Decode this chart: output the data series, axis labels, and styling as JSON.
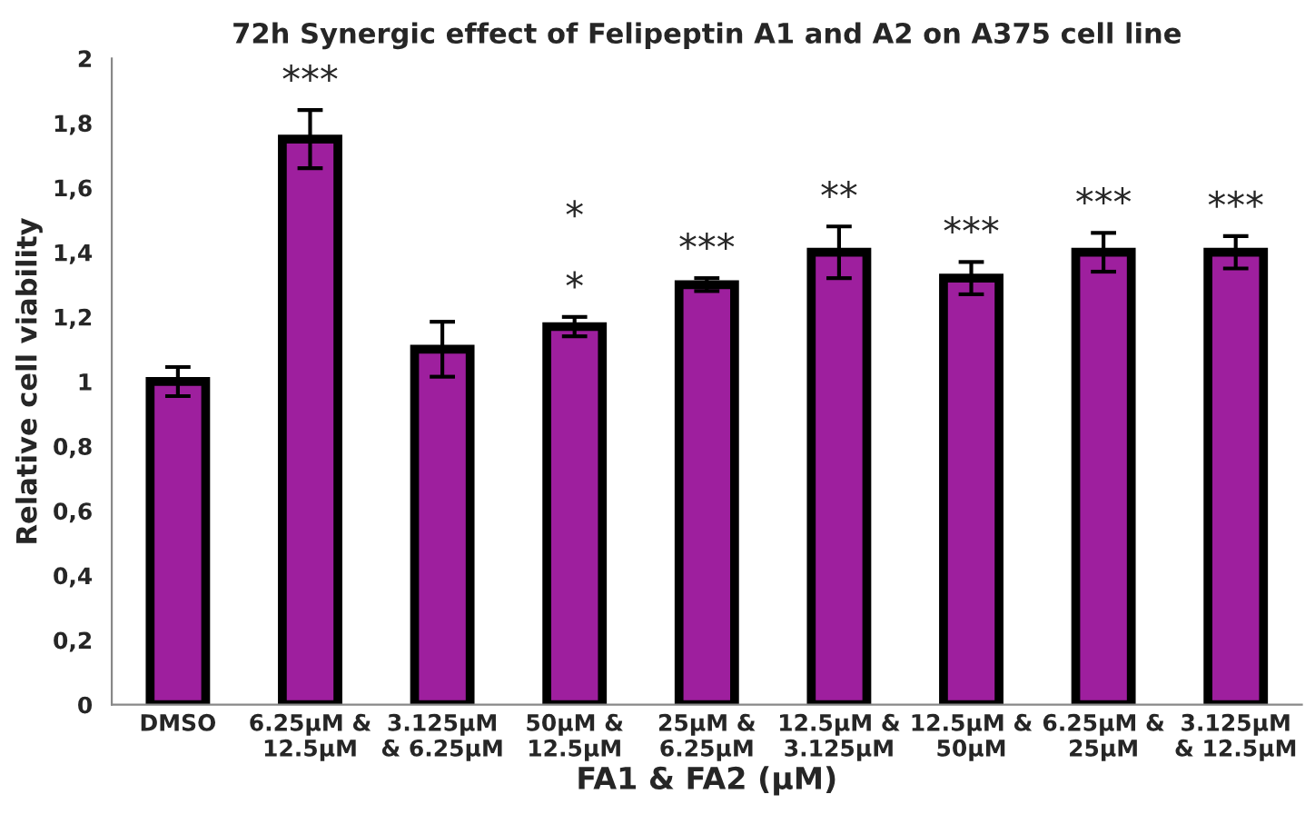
{
  "chart_data": {
    "type": "bar",
    "title": "72h Synergic effect of Felipeptin A1 and A2 on A375 cell line",
    "xlabel": "FA1 & FA2 (μM)",
    "ylabel": "Relative cell viability",
    "categories": [
      "DMSO",
      "6.25μM &\n12.5μM",
      "3.125μM\n& 6.25μM",
      "50μM &\n12.5μM",
      "25μM &\n6.25μM",
      "12.5μM &\n3.125μM",
      "12.5μM &\n50μM",
      "6.25μM &\n25μM",
      "3.125μM\n& 12.5μM"
    ],
    "values": [
      1.0,
      1.75,
      1.1,
      1.17,
      1.3,
      1.4,
      1.32,
      1.4,
      1.4
    ],
    "errors": [
      0.045,
      0.09,
      0.085,
      0.03,
      0.02,
      0.08,
      0.05,
      0.06,
      0.05
    ],
    "color": "#9e1f9e",
    "ylim": [
      0,
      2
    ],
    "yticks": [
      0,
      {
        "value": 0.2,
        "label": "0,2"
      },
      {
        "value": 0.4,
        "label": "0,4"
      },
      {
        "value": 0.6,
        "label": "0,6"
      },
      {
        "value": 0.8,
        "label": "0,8"
      },
      1,
      {
        "value": 1.2,
        "label": "1,2"
      },
      {
        "value": 1.4,
        "label": "1,4"
      },
      {
        "value": 1.6,
        "label": "1,6"
      },
      {
        "value": 1.8,
        "label": "1,8"
      },
      2
    ],
    "grid": false,
    "value_labels": [
      null,
      "***",
      null,
      "*\n*",
      "***",
      "**",
      "***",
      "***",
      "***"
    ]
  }
}
